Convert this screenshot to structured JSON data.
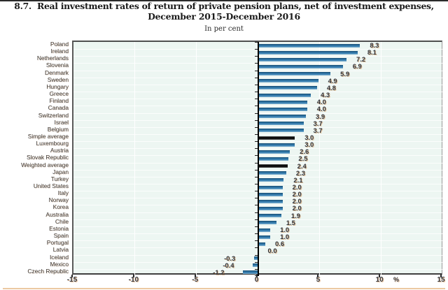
{
  "figure": {
    "title_line1": "8.7.  Real investment rates of return of private pension plans, net of investment expenses,",
    "title_line2": "December 2015-December 2016",
    "subtitle": "In per cent"
  },
  "chart_data": {
    "type": "bar",
    "orientation": "horizontal",
    "title": "8.7. Real investment rates of return of private pension plans, net of investment expenses, December 2015-December 2016",
    "subtitle": "In per cent",
    "xlabel": "",
    "ylabel": "",
    "unit_label": "%",
    "xlim": [
      -15,
      15
    ],
    "x_ticks": [
      -15,
      -10,
      -5,
      0,
      5,
      10,
      15
    ],
    "grid": true,
    "legend_position": "none",
    "categories": [
      "Poland",
      "Ireland",
      "Netherlands",
      "Slovenia",
      "Denmark",
      "Sweden",
      "Hungary",
      "Greece",
      "Finland",
      "Canada",
      "Switzerland",
      "Israel",
      "Belgium",
      "Simple average",
      "Luxembourg",
      "Austria",
      "Slovak Republic",
      "Weighted average",
      "Japan",
      "Turkey",
      "United States",
      "Italy",
      "Norway",
      "Korea",
      "Australia",
      "Chile",
      "Estonia",
      "Spain",
      "Portugal",
      "Latvia",
      "Iceland",
      "Mexico",
      "Czech Republic"
    ],
    "values": [
      8.3,
      8.1,
      7.2,
      6.9,
      5.9,
      4.9,
      4.8,
      4.3,
      4.0,
      4.0,
      3.9,
      3.7,
      3.7,
      3.0,
      3.0,
      2.6,
      2.5,
      2.4,
      2.3,
      2.1,
      2.0,
      2.0,
      2.0,
      2.0,
      1.9,
      1.5,
      1.0,
      1.0,
      0.6,
      0.0,
      -0.3,
      -0.4,
      -1.2
    ],
    "highlight_indexes": [
      13,
      17
    ],
    "colors": {
      "bar": "#2e77ab",
      "highlight_bar": "#0d0d0d",
      "plot_background": "#edf6f2",
      "gridline": "#ffffff",
      "zero_line": "#000000",
      "label_text": "#33373f"
    }
  }
}
